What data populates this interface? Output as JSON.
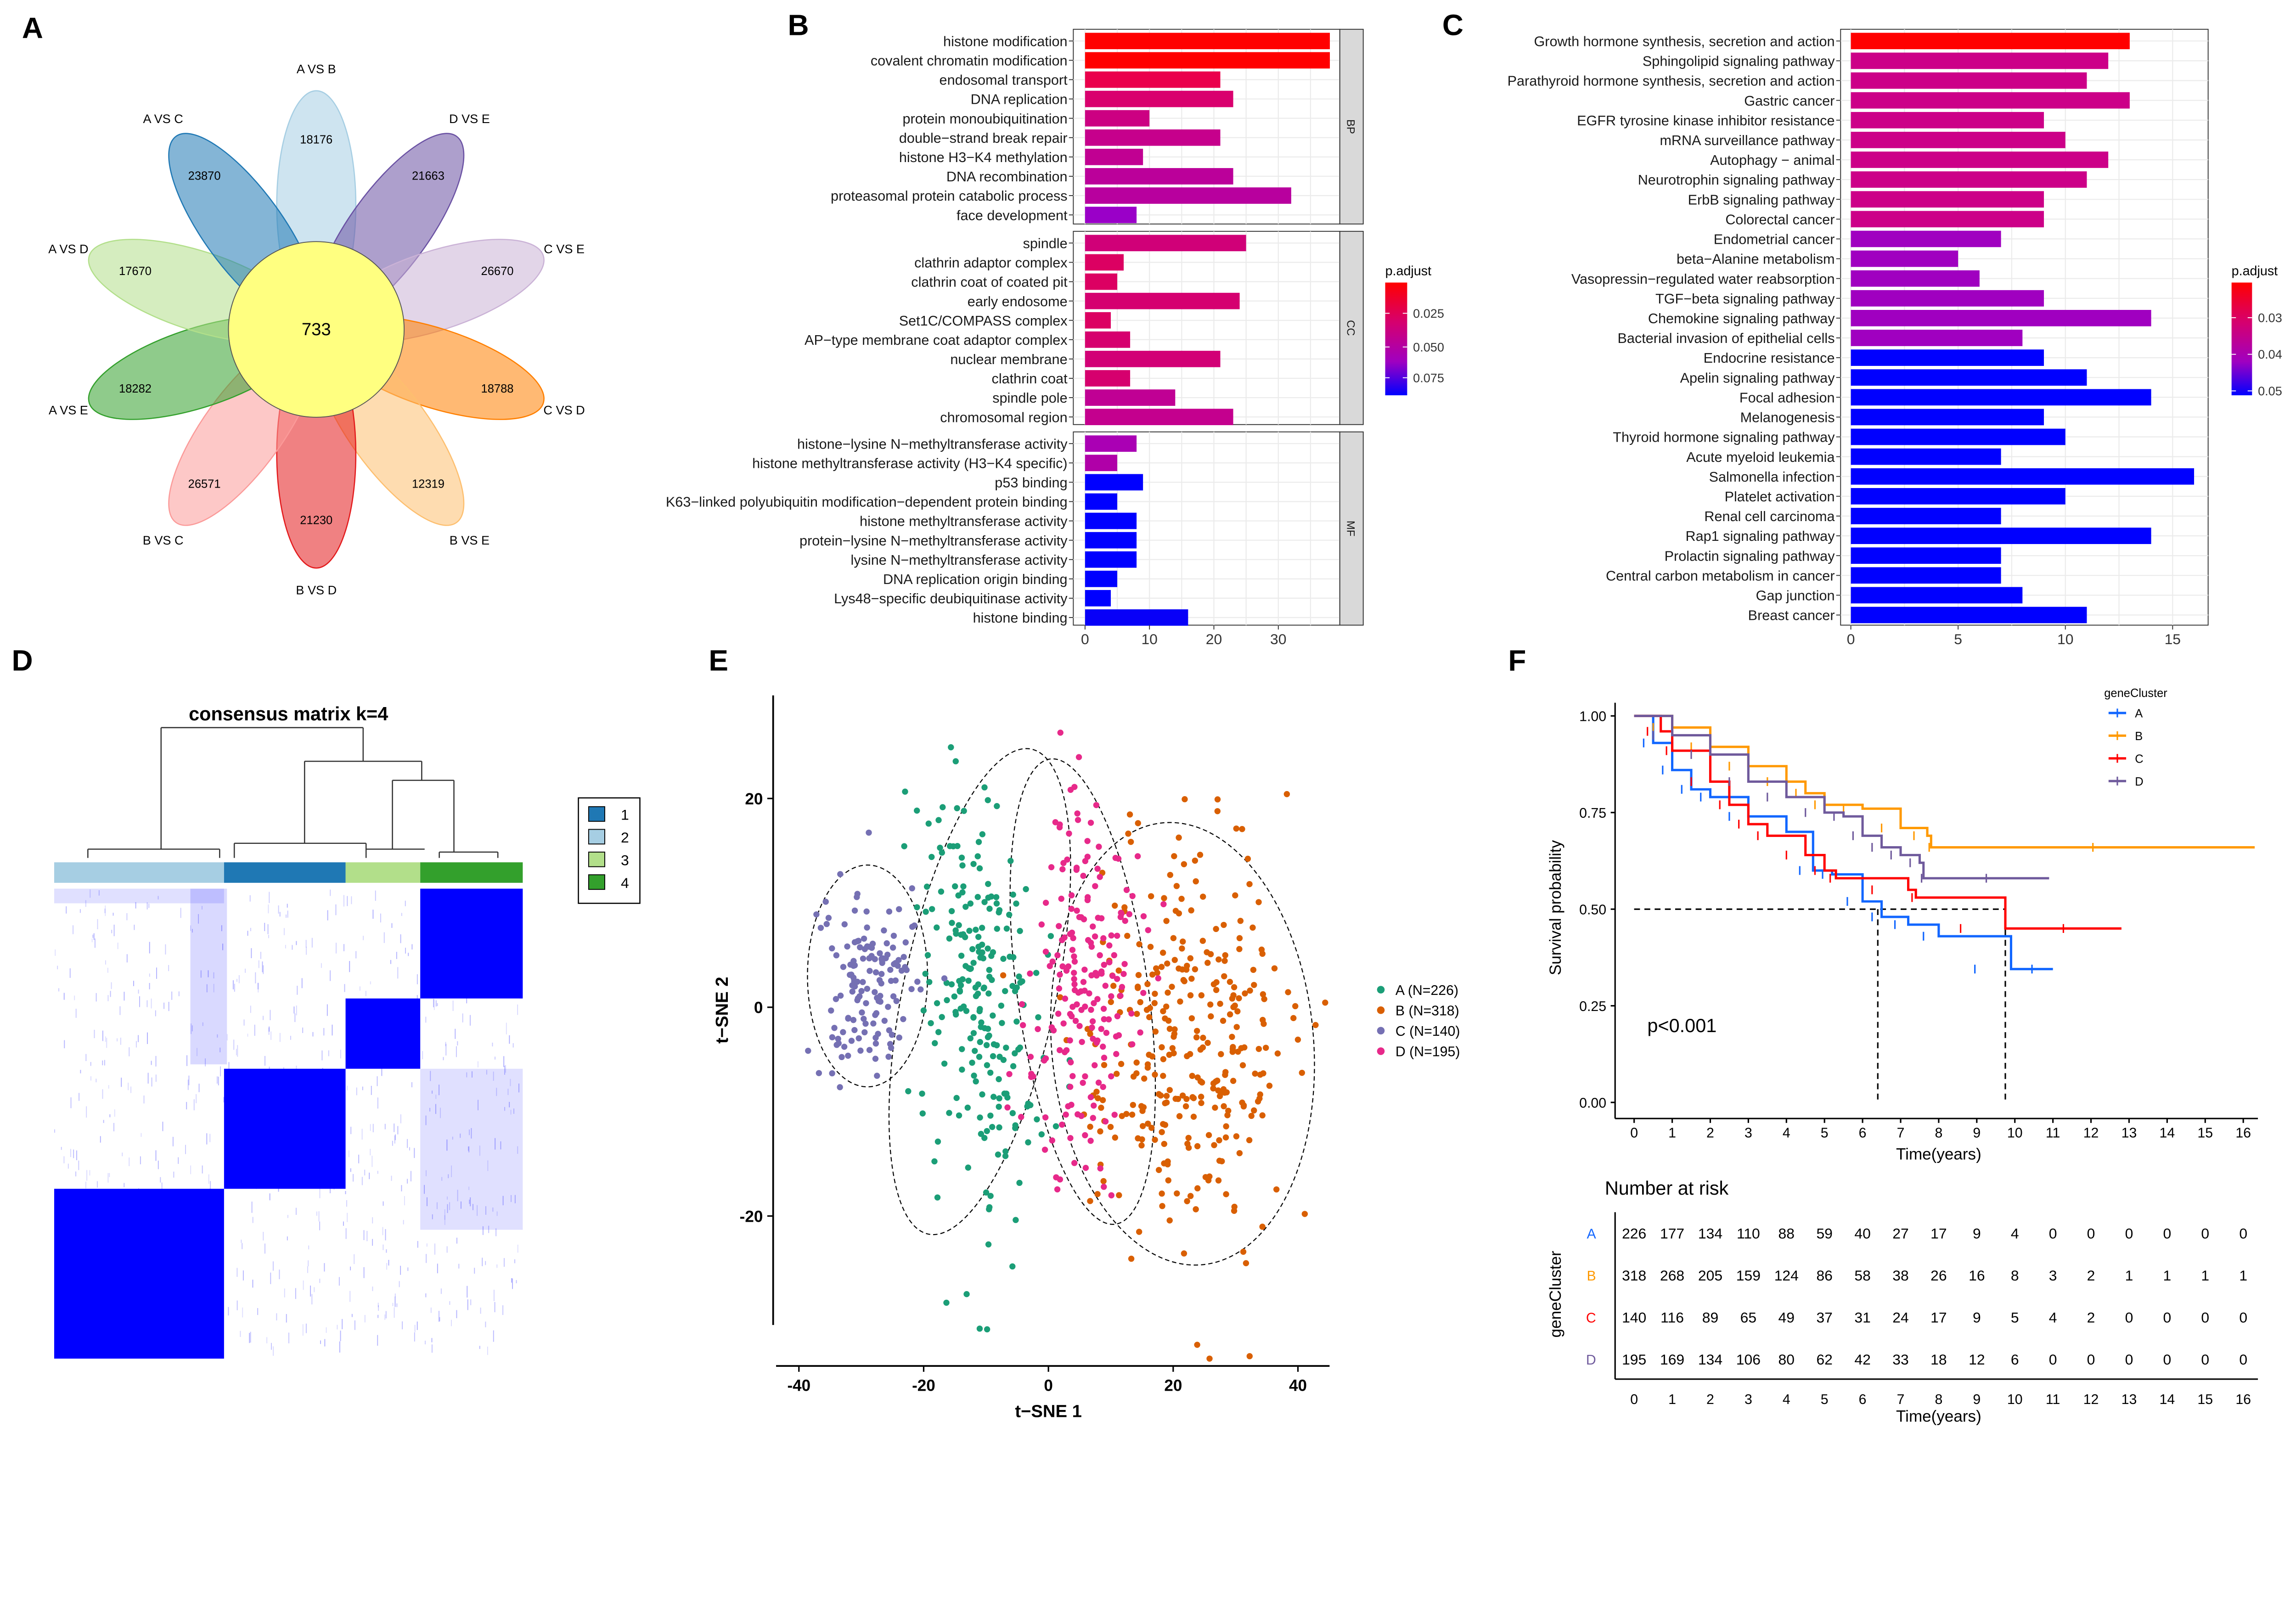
{
  "panel_labels": [
    "A",
    "B",
    "C",
    "D",
    "E",
    "F"
  ],
  "chart_data": [
    {
      "panel": "A",
      "type": "venn-flower",
      "center_value": 733,
      "petals": [
        {
          "name": "A VS B",
          "value": 18176,
          "color": "#a6cee3"
        },
        {
          "name": "D VS E",
          "value": 21663,
          "color": "#6a51a3"
        },
        {
          "name": "C VS E",
          "value": 26670,
          "color": "#cab2d6"
        },
        {
          "name": "C VS D",
          "value": 18788,
          "color": "#ff7f00"
        },
        {
          "name": "B VS E",
          "value": 12319,
          "color": "#fdbf6f"
        },
        {
          "name": "B VS D",
          "value": 21230,
          "color": "#e31a1c"
        },
        {
          "name": "B VS C",
          "value": 26571,
          "color": "#fb9a99"
        },
        {
          "name": "A VS E",
          "value": 18282,
          "color": "#33a02c"
        },
        {
          "name": "A VS D",
          "value": 17670,
          "color": "#b2df8a"
        },
        {
          "name": "A VS C",
          "value": 23870,
          "color": "#1f78b4"
        }
      ],
      "center_color": "#ffff80"
    },
    {
      "panel": "B",
      "type": "bar",
      "orientation": "horizontal",
      "xlim": [
        0,
        40
      ],
      "xticks": [
        0,
        10,
        20,
        30
      ],
      "grid": true,
      "legend": {
        "title": "p.adjust",
        "ticks": [
          "0.025",
          "0.050",
          "0.075"
        ],
        "position": "right"
      },
      "facets": [
        {
          "name": "BP",
          "categories": [
            "histone modification",
            "covalent chromatin modification",
            "endosomal transport",
            "DNA replication",
            "protein monoubiquitination",
            "double−strand break repair",
            "histone H3−K4 methylation",
            "DNA recombination",
            "proteasomal protein catabolic process",
            "face development"
          ],
          "values": [
            38,
            38,
            21,
            23,
            10,
            21,
            9,
            23,
            32,
            8
          ],
          "colors": [
            "#ff0000",
            "#ff0000",
            "#ea004c",
            "#d9006e",
            "#cc0082",
            "#c6008c",
            "#c10092",
            "#bb009a",
            "#b8009e",
            "#9a00c8"
          ]
        },
        {
          "name": "CC",
          "categories": [
            "spindle",
            "clathrin adaptor complex",
            "clathrin coat of coated pit",
            "early endosome",
            "Set1C/COMPASS complex",
            "AP−type membrane coat adaptor complex",
            "nuclear membrane",
            "clathrin coat",
            "spindle pole",
            "chromosomal region"
          ],
          "values": [
            25,
            6,
            5,
            24,
            4,
            7,
            21,
            7,
            14,
            23
          ],
          "colors": [
            "#d00078",
            "#dc0062",
            "#dc0062",
            "#d50070",
            "#dc0062",
            "#d6006e",
            "#d20076",
            "#d6006e",
            "#c00094",
            "#c4008e"
          ]
        },
        {
          "name": "MF",
          "categories": [
            "histone−lysine N−methyltransferase activity",
            "histone methyltransferase activity (H3−K4 specific)",
            "p53 binding",
            "K63−linked polyubiquitin modification−dependent protein binding",
            "histone methyltransferase activity",
            "protein−lysine N−methyltransferase activity",
            "lysine N−methyltransferase activity",
            "DNA replication origin binding",
            "Lys48−specific deubiquitinase activity",
            "histone binding"
          ],
          "values": [
            8,
            5,
            9,
            5,
            8,
            8,
            8,
            5,
            4,
            16
          ],
          "colors": [
            "#aa00b4",
            "#b000a8",
            "#0000ff",
            "#0000ff",
            "#0000ff",
            "#0000ff",
            "#0000ff",
            "#0000ff",
            "#0000ff",
            "#0800f8"
          ]
        }
      ]
    },
    {
      "panel": "C",
      "type": "bar",
      "orientation": "horizontal",
      "xlim": [
        0,
        16.5
      ],
      "xticks": [
        0,
        5,
        10,
        15
      ],
      "grid": true,
      "legend": {
        "title": "p.adjust",
        "ticks": [
          "0.03",
          "0.04",
          "0.05"
        ],
        "position": "right"
      },
      "categories": [
        "Growth hormone synthesis, secretion and action",
        "Sphingolipid signaling pathway",
        "Parathyroid hormone synthesis, secretion and action",
        "Gastric cancer",
        "EGFR tyrosine kinase inhibitor resistance",
        "mRNA surveillance pathway",
        "Autophagy − animal",
        "Neurotrophin signaling pathway",
        "ErbB signaling pathway",
        "Colorectal cancer",
        "Endometrial cancer",
        "beta−Alanine metabolism",
        "Vasopressin−regulated water reabsorption",
        "TGF−beta signaling pathway",
        "Chemokine signaling pathway",
        "Bacterial invasion of epithelial cells",
        "Endocrine resistance",
        "Apelin signaling pathway",
        "Focal adhesion",
        "Melanogenesis",
        "Thyroid hormone signaling pathway",
        "Acute myeloid leukemia",
        "Salmonella infection",
        "Platelet activation",
        "Renal cell carcinoma",
        "Rap1 signaling pathway",
        "Prolactin signaling pathway",
        "Central carbon metabolism in cancer",
        "Gap junction",
        "Breast cancer"
      ],
      "values": [
        13,
        12,
        11,
        13,
        9,
        10,
        12,
        11,
        9,
        9,
        7,
        5,
        6,
        9,
        14,
        8,
        9,
        11,
        14,
        9,
        10,
        7,
        16,
        10,
        7,
        14,
        7,
        7,
        8,
        11
      ],
      "colors": [
        "#ff0000",
        "#cc0088",
        "#cc0088",
        "#cc0088",
        "#cc0088",
        "#cc0088",
        "#cc0088",
        "#cc0088",
        "#cc0088",
        "#cc0088",
        "#a000c0",
        "#a000c0",
        "#a000c0",
        "#a000c0",
        "#a000c0",
        "#a000c0",
        "#0000ff",
        "#0000ff",
        "#0000ff",
        "#0000ff",
        "#0000ff",
        "#0000ff",
        "#0000ff",
        "#0000ff",
        "#0000ff",
        "#0000ff",
        "#0000ff",
        "#0000ff",
        "#0000ff",
        "#0000ff"
      ]
    },
    {
      "panel": "D",
      "type": "heatmap",
      "title": "consensus matrix k=4",
      "legend": {
        "entries": [
          "1",
          "2",
          "3",
          "4"
        ],
        "colors": [
          "#1f78b4",
          "#a6cee3",
          "#b2df8a",
          "#33a02c"
        ]
      },
      "column_order_clusters": [
        "2",
        "1",
        "3",
        "4"
      ],
      "heat_color": "#0000ff"
    },
    {
      "panel": "E",
      "type": "scatter",
      "xlabel": "t−SNE 1",
      "ylabel": "t−SNE 2",
      "xticks": [
        -40,
        -20,
        0,
        20,
        40
      ],
      "yticks": [
        -20,
        0,
        20
      ],
      "xlim": [
        -44,
        46
      ],
      "ylim": [
        -31,
        30
      ],
      "series": [
        {
          "name": "A (N=226)",
          "n": 226,
          "color": "#1b9e77",
          "center": [
            -11,
            1.5
          ],
          "spread": [
            7,
            19
          ],
          "tilt": 12
        },
        {
          "name": "B (N=318)",
          "n": 318,
          "color": "#d95f02",
          "center": [
            21.5,
            -3.5
          ],
          "spread": [
            12,
            17
          ],
          "tilt": -5
        },
        {
          "name": "C (N=140)",
          "n": 140,
          "color": "#7570b3",
          "center": [
            -29,
            3
          ],
          "spread": [
            5.5,
            8.5
          ],
          "tilt": 0
        },
        {
          "name": "D (N=195)",
          "n": 195,
          "color": "#e7298a",
          "center": [
            5.5,
            1.5
          ],
          "spread": [
            6,
            18
          ],
          "tilt": -8
        }
      ]
    },
    {
      "panel": "F",
      "type": "line",
      "subtype": "kaplan-meier",
      "xlabel": "Time(years)",
      "ylabel": "Survival probability",
      "xticks": [
        0,
        1,
        2,
        3,
        4,
        5,
        6,
        7,
        8,
        9,
        10,
        11,
        12,
        13,
        14,
        15,
        16
      ],
      "yticks": [
        "0.00",
        "0.25",
        "0.50",
        "0.75",
        "1.00"
      ],
      "xlim": [
        0,
        16.5
      ],
      "ylim": [
        0,
        1
      ],
      "annotation": "p<0.001",
      "legend": {
        "title": "geneCluster",
        "position": "top-right"
      },
      "median_times": [
        6.4,
        9.75
      ],
      "series": [
        {
          "name": "A",
          "color": "#1166ff",
          "x": [
            0,
            0.5,
            1,
            1.5,
            2,
            3,
            4,
            4.7,
            5.2,
            6,
            6.5,
            7.2,
            8,
            9.9,
            11
          ],
          "y": [
            1,
            0.93,
            0.86,
            0.81,
            0.79,
            0.74,
            0.7,
            0.6,
            0.59,
            0.52,
            0.48,
            0.46,
            0.43,
            0.345,
            0.345
          ]
        },
        {
          "name": "B",
          "color": "#ff9900",
          "x": [
            0,
            1,
            2,
            3,
            4,
            4.5,
            5,
            6,
            7,
            7.7,
            7.8,
            16.3
          ],
          "y": [
            1,
            0.97,
            0.92,
            0.87,
            0.83,
            0.8,
            0.77,
            0.76,
            0.71,
            0.69,
            0.66,
            0.66
          ]
        },
        {
          "name": "C",
          "color": "#ff0000",
          "x": [
            0,
            0.7,
            1,
            2,
            2.5,
            3,
            3.5,
            4.5,
            5,
            5.3,
            7.2,
            7.4,
            9.75,
            12.8
          ],
          "y": [
            1,
            0.96,
            0.91,
            0.83,
            0.77,
            0.72,
            0.69,
            0.64,
            0.6,
            0.58,
            0.55,
            0.53,
            0.45,
            0.45
          ]
        },
        {
          "name": "D",
          "color": "#6f5a9c",
          "x": [
            0,
            1,
            2,
            3,
            4,
            5,
            5.5,
            6,
            6.5,
            7,
            7.5,
            7.6,
            10.9
          ],
          "y": [
            1,
            0.95,
            0.9,
            0.83,
            0.79,
            0.75,
            0.74,
            0.69,
            0.66,
            0.64,
            0.62,
            0.58,
            0.58
          ]
        }
      ],
      "risk_table": {
        "title": "Number at risk",
        "ylabel": "geneCluster",
        "xlabel": "Time(years)",
        "rows": [
          {
            "name": "A",
            "values": [
              226,
              177,
              134,
              110,
              88,
              59,
              40,
              27,
              17,
              9,
              4,
              0,
              0,
              0,
              0,
              0,
              0
            ]
          },
          {
            "name": "B",
            "values": [
              318,
              268,
              205,
              159,
              124,
              86,
              58,
              38,
              26,
              16,
              8,
              3,
              2,
              1,
              1,
              1,
              1
            ]
          },
          {
            "name": "C",
            "values": [
              140,
              116,
              89,
              65,
              49,
              37,
              31,
              24,
              17,
              9,
              5,
              4,
              2,
              0,
              0,
              0,
              0
            ]
          },
          {
            "name": "D",
            "values": [
              195,
              169,
              134,
              106,
              80,
              62,
              42,
              33,
              18,
              12,
              6,
              0,
              0,
              0,
              0,
              0,
              0
            ]
          }
        ]
      }
    }
  ]
}
